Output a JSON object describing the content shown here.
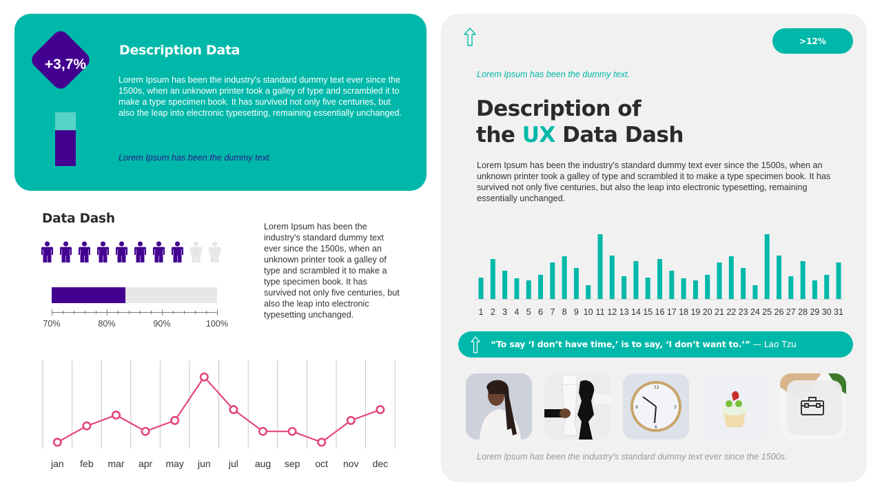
{
  "colors": {
    "teal": "#00b8a9",
    "teal_light": "#55d4c7",
    "purple": "#430090",
    "pink": "#e4457a",
    "panel_bg": "#f1f1f1",
    "inactive_gray": "#e7e7e7"
  },
  "left_card": {
    "badge_value": "+3,7%",
    "title": "Description Data",
    "body": "Lorem Ipsum has been the industry's standard dummy text ever since the 1500s, when an unknown printer took a galley of type and scrambled it to make a type specimen book. It has survived not only five centuries, but also the leap into electronic typesetting, remaining essentially unchanged.",
    "italic_note": "Lorem Ipsum has been the dummy text."
  },
  "data_dash": {
    "title": "Data Dash",
    "people_total": 10,
    "people_active": 8,
    "progress_percent": 83.4,
    "axis_labels": [
      "70%",
      "80%",
      "90%",
      "100%"
    ],
    "body": "Lorem Ipsum has been the industry's standard dummy text ever since the 1500s, when an unknown printer took a galley of type and scrambled it to make a type specimen book. It has survived not only five centuries, but also the leap into electronic typesetting unchanged."
  },
  "right_panel": {
    "pill_label": ">12%",
    "italic_note": "Lorem Ipsum has been the dummy text.",
    "heading_line1": "Description of",
    "heading_line2_pre": "the ",
    "heading_line2_accent": "UX",
    "heading_line2_post": " Data Dash",
    "body": "Lorem Ipsum has been the industry's standard dummy text ever since the 1500s, when an unknown printer took a galley of type and scrambled it to make a type specimen book. It has survived not only five centuries, but also the leap into electronic typesetting, remaining essentially unchanged.",
    "quote": "“To say ‘I don’t have time,’ is to say, ‘I don’t want to.’”",
    "quote_author": " — Lao Tzu",
    "thumbnails": [
      {
        "name": "woman-with-braids-photo"
      },
      {
        "name": "chess-pieces-photo"
      },
      {
        "name": "wall-clock-photo"
      },
      {
        "name": "cupcake-photo"
      },
      {
        "name": "briefcase-icon-tile"
      }
    ],
    "footer_note": "Lorem Ipsum has been the industry's standard dummy text ever since the 1500s."
  },
  "chart_data": [
    {
      "type": "line",
      "title": "",
      "categories": [
        "jan",
        "feb",
        "mar",
        "apr",
        "may",
        "jun",
        "jul",
        "aug",
        "sep",
        "oct",
        "nov",
        "dec"
      ],
      "values": [
        1,
        4,
        6,
        3,
        5,
        13,
        7,
        3,
        3,
        1,
        5,
        7
      ],
      "xlabel": "",
      "ylabel": "",
      "grid": "vertical",
      "color": "#e4457a"
    },
    {
      "type": "bar",
      "title": "",
      "categories": [
        "1",
        "2",
        "3",
        "4",
        "5",
        "6",
        "7",
        "8",
        "9",
        "10",
        "11",
        "12",
        "13",
        "14",
        "15",
        "16",
        "17",
        "18",
        "19",
        "20",
        "21",
        "22",
        "23",
        "24",
        "25",
        "26",
        "27",
        "28",
        "29",
        "30",
        "31"
      ],
      "values": [
        31,
        58,
        41,
        30,
        27,
        35,
        53,
        62,
        45,
        20,
        94,
        63,
        33,
        55,
        31,
        58,
        41,
        30,
        27,
        35,
        53,
        62,
        45,
        20,
        94,
        63,
        33,
        55,
        27,
        35,
        53
      ],
      "xlabel": "",
      "ylabel": "",
      "ylim": [
        0,
        100
      ],
      "color": "#00b8a9"
    },
    {
      "type": "bar",
      "title": "Data Dash progress",
      "categories": [
        "progress"
      ],
      "values": [
        83.4
      ],
      "xlim": [
        70,
        100
      ],
      "orientation": "horizontal",
      "color": "#430090"
    }
  ]
}
